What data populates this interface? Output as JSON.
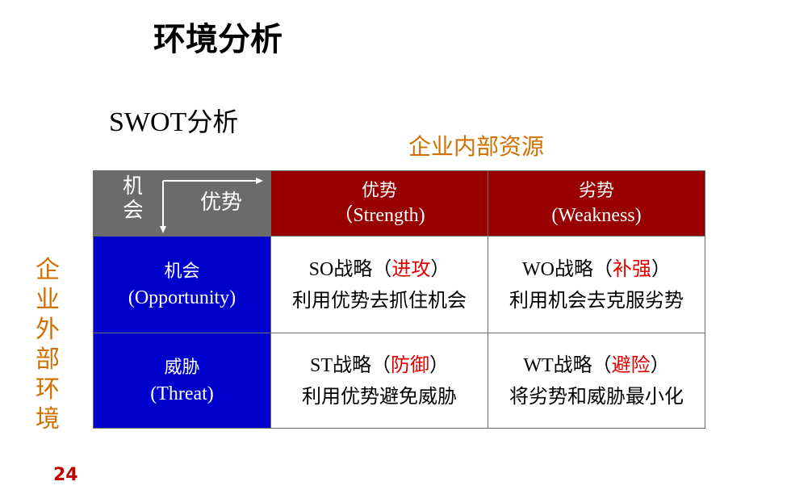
{
  "title": "环境分析",
  "subtitle": {
    "latin": "SWOT",
    "cjk": "分析"
  },
  "internal_label": "企业内部资源",
  "external_label": "企业外部环境",
  "page_number": "24",
  "table": {
    "corner": {
      "vertical": "机会",
      "horizontal": "优势"
    },
    "columns": [
      {
        "cn": "优势",
        "en": "（Strength)"
      },
      {
        "cn": "劣势",
        "en": "(Weakness)"
      }
    ],
    "rows": [
      {
        "label_cn": "机会",
        "label_en": "(Opportunity)",
        "cells": [
          {
            "code": "SO",
            "word": "战略（",
            "action": "进攻",
            "close": "）",
            "desc": "利用优势去抓住机会"
          },
          {
            "code": "WO",
            "word": "战略（",
            "action": "补强",
            "close": "）",
            "desc": "利用机会去克服劣势"
          }
        ]
      },
      {
        "label_cn": "威胁",
        "label_en": "(Threat)",
        "cells": [
          {
            "code": "ST",
            "word": "战略（",
            "action": "防御",
            "close": "）",
            "desc": "利用优势避免威胁"
          },
          {
            "code": "WT",
            "word": "战略（",
            "action": "避险",
            "close": "）",
            "desc": "将劣势和威胁最小化"
          }
        ]
      }
    ]
  },
  "colors": {
    "accent_orange": "#d07000",
    "header_red": "#990000",
    "row_blue": "#0000cc",
    "corner_gray": "#6b6b6b",
    "highlight_red": "#e00000",
    "page_number_red": "#c00000"
  }
}
